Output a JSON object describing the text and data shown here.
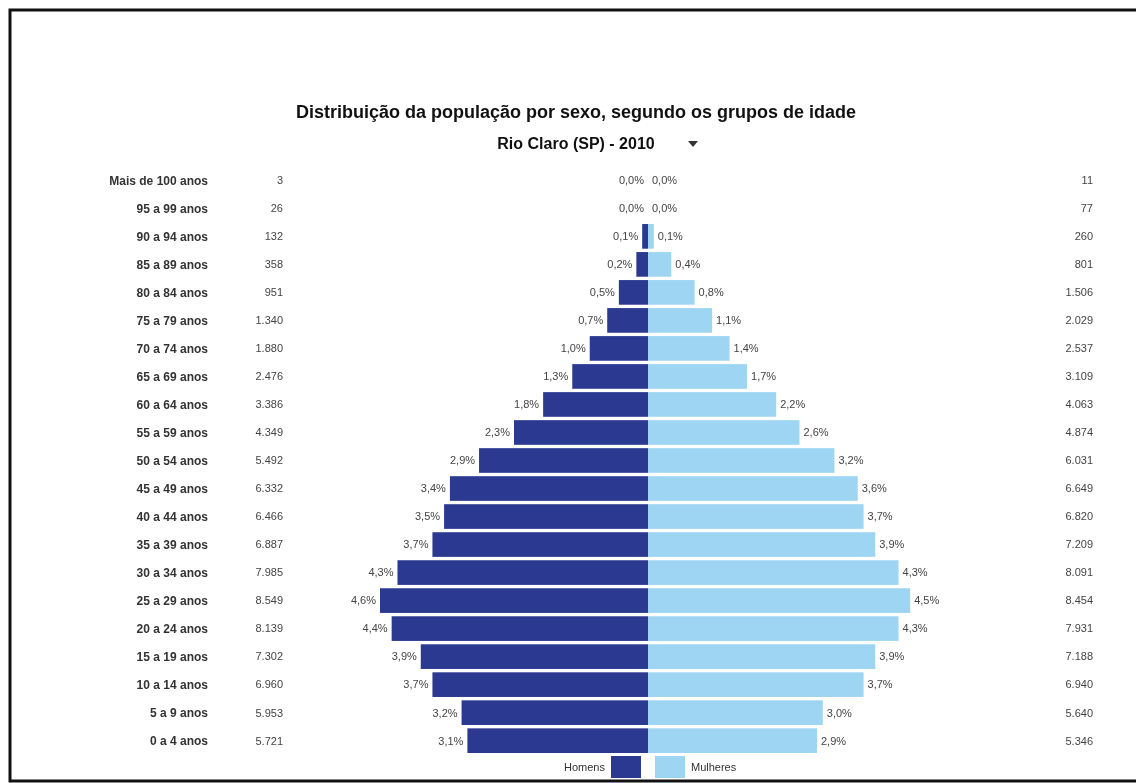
{
  "chart_data": [
    {
      "type": "bar",
      "orientation": "horizontal",
      "title": "Distribuição da população por sexo, segundo os grupos de idade",
      "subtitle": "Rio Claro (SP) - 2010",
      "categories": [
        "Mais de 100 anos",
        "95 a 99 anos",
        "90 a 94 anos",
        "85 a 89 anos",
        "80 a 84 anos",
        "75 a 79 anos",
        "70 a 74 anos",
        "65 a 69 anos",
        "60 a 64 anos",
        "55 a 59 anos",
        "50 a 54 anos",
        "45 a 49 anos",
        "40 a 44 anos",
        "35 a 39 anos",
        "30 a 34 anos",
        "25 a 29 anos",
        "20 a 24 anos",
        "15 a 19 anos",
        "10 a 14 anos",
        "5 a 9 anos",
        "0 a 4 anos"
      ],
      "tick_labels": "y",
      "series": [
        {
          "name": "Homens",
          "color": "#2b3990",
          "values": [
            0.0,
            0.0,
            0.1,
            0.2,
            0.5,
            0.7,
            1.0,
            1.3,
            1.8,
            2.3,
            2.9,
            3.4,
            3.5,
            3.7,
            4.3,
            4.6,
            4.4,
            3.9,
            3.7,
            3.2,
            3.1
          ],
          "value_labels": [
            "0,0%",
            "0,0%",
            "0,1%",
            "0,2%",
            "0,5%",
            "0,7%",
            "1,0%",
            "1,3%",
            "1,8%",
            "2,3%",
            "2,9%",
            "3,4%",
            "3,5%",
            "3,7%",
            "4,3%",
            "4,6%",
            "4,4%",
            "3,9%",
            "3,7%",
            "3,2%",
            "3,1%"
          ]
        }
      ],
      "annotations": [
        "3",
        "26",
        "132",
        "358",
        "951",
        "1.340",
        "1.880",
        "2.476",
        "3.386",
        "4.349",
        "5.492",
        "6.332",
        "6.466",
        "6.887",
        "7.985",
        "8.549",
        "8.139",
        "7.302",
        "6.960",
        "5.953",
        "5.721"
      ],
      "legend": "bottom"
    },
    {
      "type": "bar",
      "orientation": "horizontal",
      "categories": [
        "Mais de 100 anos",
        "95 a 99 anos",
        "90 a 94 anos",
        "85 a 89 anos",
        "80 a 84 anos",
        "75 a 79 anos",
        "70 a 74 anos",
        "65 a 69 anos",
        "60 a 64 anos",
        "55 a 59 anos",
        "50 a 54 anos",
        "45 a 49 anos",
        "40 a 44 anos",
        "35 a 39 anos",
        "30 a 34 anos",
        "25 a 29 anos",
        "20 a 24 anos",
        "15 a 19 anos",
        "10 a 14 anos",
        "5 a 9 anos",
        "0 a 4 anos"
      ],
      "tick_labels": false,
      "series": [
        {
          "name": "Mulheres",
          "color": "#9dd5f3",
          "values": [
            0.0,
            0.0,
            0.1,
            0.4,
            0.8,
            1.1,
            1.4,
            1.7,
            2.2,
            2.6,
            3.2,
            3.6,
            3.7,
            3.9,
            4.3,
            4.5,
            4.3,
            3.9,
            3.7,
            3.0,
            2.9
          ],
          "value_labels": [
            "0,0%",
            "0,0%",
            "0,1%",
            "0,4%",
            "0,8%",
            "1,1%",
            "1,4%",
            "1,7%",
            "2,2%",
            "2,6%",
            "3,2%",
            "3,6%",
            "3,7%",
            "3,9%",
            "4,3%",
            "4,5%",
            "4,3%",
            "3,9%",
            "3,7%",
            "3,0%",
            "2,9%"
          ]
        }
      ],
      "annotations": [
        "11",
        "77",
        "260",
        "801",
        "1.506",
        "2.029",
        "2.537",
        "3.109",
        "4.063",
        "4.874",
        "6.031",
        "6.649",
        "6.820",
        "7.209",
        "8.091",
        "8.454",
        "7.931",
        "7.188",
        "6.940",
        "5.640",
        "5.346"
      ],
      "legend": "bottom"
    }
  ]
}
